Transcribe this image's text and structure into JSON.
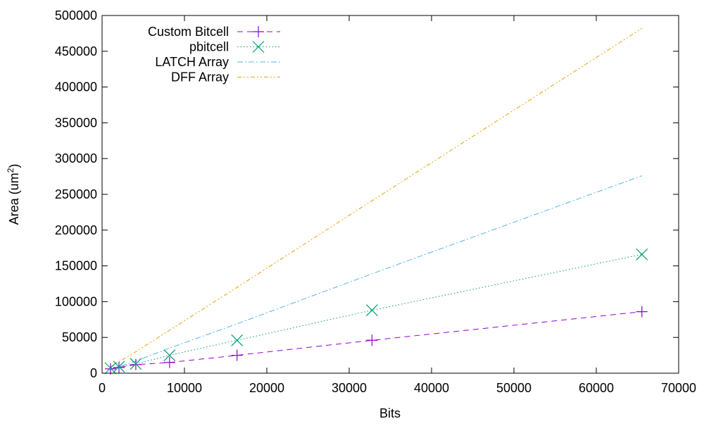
{
  "chart_data": {
    "type": "line",
    "title": "",
    "xlabel": "Bits",
    "ylabel": "Area (um",
    "ylabel_superscript": "2",
    "ylabel_suffix": ")",
    "xlim": [
      0,
      70000
    ],
    "ylim": [
      0,
      500000
    ],
    "x_ticks": [
      0,
      10000,
      20000,
      30000,
      40000,
      50000,
      60000,
      70000
    ],
    "y_ticks": [
      0,
      50000,
      100000,
      150000,
      200000,
      250000,
      300000,
      350000,
      400000,
      450000,
      500000
    ],
    "x_tick_labels": [
      "0",
      "10000",
      "20000",
      "30000",
      "40000",
      "50000",
      "60000",
      "70000"
    ],
    "y_tick_labels": [
      "0",
      "50000",
      "100000",
      "150000",
      "200000",
      "250000",
      "300000",
      "350000",
      "400000",
      "450000",
      "500000"
    ],
    "grid": false,
    "legend_position": "top-left",
    "series": [
      {
        "name": "Custom Bitcell",
        "color": "#9400d3",
        "style": "dashed",
        "marker": "plus",
        "points": [
          [
            1024,
            6000
          ],
          [
            2048,
            8000
          ],
          [
            4096,
            12000
          ],
          [
            8192,
            15000
          ],
          [
            16384,
            25000
          ],
          [
            32768,
            46000
          ],
          [
            65536,
            86000
          ]
        ]
      },
      {
        "name": "pbitcell",
        "color": "#009e73",
        "style": "dotted",
        "marker": "cross",
        "points": [
          [
            1024,
            7000
          ],
          [
            2048,
            9000
          ],
          [
            4096,
            13000
          ],
          [
            8192,
            25000
          ],
          [
            16384,
            46000
          ],
          [
            32768,
            88000
          ],
          [
            65536,
            166000
          ]
        ]
      },
      {
        "name": "LATCH Array",
        "color": "#56b4e9",
        "style": "dashdot",
        "marker": "none",
        "points": [
          [
            1024,
            5000
          ],
          [
            2048,
            9000
          ],
          [
            4096,
            17000
          ],
          [
            8192,
            35000
          ],
          [
            16384,
            69000
          ],
          [
            32768,
            139000
          ],
          [
            65536,
            276000
          ]
        ]
      },
      {
        "name": "DFF Array",
        "color": "#e69f00",
        "style": "dashdotdot",
        "marker": "none",
        "points": [
          [
            1024,
            9000
          ],
          [
            2048,
            16000
          ],
          [
            4096,
            30000
          ],
          [
            8192,
            60000
          ],
          [
            16384,
            120000
          ],
          [
            32768,
            241000
          ],
          [
            65536,
            482000
          ]
        ]
      }
    ]
  }
}
